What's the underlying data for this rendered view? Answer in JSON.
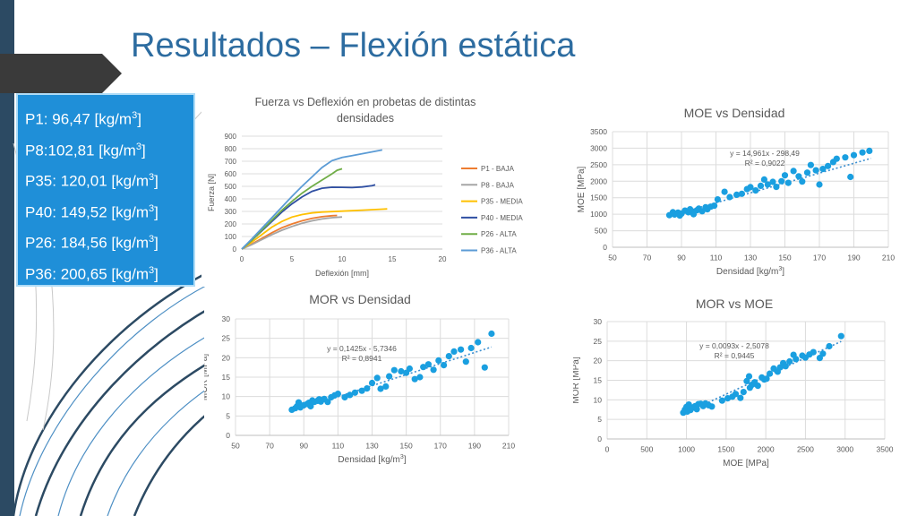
{
  "slide": {
    "title": "Resultados – Flexión estática"
  },
  "density_box": {
    "items": [
      {
        "pre": "P1: 96,47 [kg/m",
        "sup": "3",
        "post": "]"
      },
      {
        "pre": "P8:102,81 [kg/m",
        "sup": "3",
        "post": "]"
      },
      {
        "pre": "P35: 120,01 [kg/m",
        "sup": "3",
        "post": "]"
      },
      {
        "pre": "P40: 149,52 [kg/m",
        "sup": "3",
        "post": "]"
      },
      {
        "pre": "P26: 184,56 [kg/m",
        "sup": "3",
        "post": "]"
      },
      {
        "pre": "P36: 200,65 [kg/m",
        "sup": "3",
        "post": "]"
      }
    ]
  },
  "colors": {
    "title": "#2d6ca0",
    "box": "#1f8fd8",
    "points": "#1a9fe0",
    "trend": "#3b8fd0",
    "grid": "#dcdcdc",
    "left_bar": "#2c4a63"
  },
  "chart_data": [
    {
      "type": "line",
      "title": [
        "Fuerza vs Deflexión en probetas de distintas",
        "densidades"
      ],
      "xlabel": "Deflexión [mm]",
      "ylabel": "Fuerza [N]",
      "xlim": [
        0,
        20
      ],
      "ylim": [
        0,
        900
      ],
      "xticks": [
        0,
        5,
        10,
        15,
        20
      ],
      "yticks": [
        0,
        100,
        200,
        300,
        400,
        500,
        600,
        700,
        800,
        900
      ],
      "grid": true,
      "legend": "right",
      "series": [
        {
          "name": "P1 - BAJA",
          "color": "#ed7d31",
          "points": [
            [
              0,
              0
            ],
            [
              1,
              40
            ],
            [
              2,
              85
            ],
            [
              3,
              130
            ],
            [
              4,
              170
            ],
            [
              5,
              200
            ],
            [
              6,
              225
            ],
            [
              7,
              245
            ],
            [
              8,
              258
            ],
            [
              9,
              266
            ],
            [
              9.5,
              268
            ]
          ]
        },
        {
          "name": "P8 - BAJA",
          "color": "#a5a5a5",
          "points": [
            [
              0,
              0
            ],
            [
              1,
              35
            ],
            [
              2,
              75
            ],
            [
              3,
              115
            ],
            [
              4,
              150
            ],
            [
              5,
              180
            ],
            [
              6,
              205
            ],
            [
              7,
              225
            ],
            [
              8,
              240
            ],
            [
              9,
              250
            ],
            [
              10,
              256
            ]
          ]
        },
        {
          "name": "P35 - MEDIA",
          "color": "#ffc000",
          "points": [
            [
              0,
              0
            ],
            [
              1,
              55
            ],
            [
              2,
              115
            ],
            [
              3,
              175
            ],
            [
              4,
              220
            ],
            [
              5,
              255
            ],
            [
              6,
              275
            ],
            [
              7,
              288
            ],
            [
              8,
              295
            ],
            [
              10,
              302
            ],
            [
              12,
              310
            ],
            [
              14,
              318
            ],
            [
              14.5,
              320
            ]
          ]
        },
        {
          "name": "P40 - MEDIA",
          "color": "#2f4fa2",
          "points": [
            [
              0,
              0
            ],
            [
              1,
              70
            ],
            [
              2,
              145
            ],
            [
              3,
              220
            ],
            [
              4,
              295
            ],
            [
              5,
              360
            ],
            [
              6,
              415
            ],
            [
              7,
              460
            ],
            [
              8,
              485
            ],
            [
              9,
              493
            ],
            [
              10,
              492
            ],
            [
              11,
              490
            ],
            [
              12,
              495
            ],
            [
              13,
              505
            ],
            [
              13.3,
              512
            ]
          ]
        },
        {
          "name": "P26 - ALTA",
          "color": "#70ad47",
          "points": [
            [
              0,
              0
            ],
            [
              1,
              70
            ],
            [
              2,
              150
            ],
            [
              3,
              230
            ],
            [
              4,
              310
            ],
            [
              5,
              380
            ],
            [
              6,
              445
            ],
            [
              7,
              500
            ],
            [
              8,
              550
            ],
            [
              9,
              600
            ],
            [
              9.5,
              628
            ],
            [
              10,
              640
            ]
          ]
        },
        {
          "name": "P36 - ALTA",
          "color": "#5b9bd5",
          "points": [
            [
              0,
              0
            ],
            [
              1,
              80
            ],
            [
              2,
              165
            ],
            [
              3,
              250
            ],
            [
              4,
              335
            ],
            [
              5,
              420
            ],
            [
              6,
              500
            ],
            [
              7,
              575
            ],
            [
              8,
              650
            ],
            [
              9,
              705
            ],
            [
              10,
              730
            ],
            [
              11,
              745
            ],
            [
              12,
              760
            ],
            [
              13,
              775
            ],
            [
              14,
              790
            ]
          ]
        }
      ]
    },
    {
      "type": "scatter",
      "title": "MOE vs Densidad",
      "xlabel": "Densidad [kg/m",
      "xlabel_sup": "3",
      "xlabel_post": "]",
      "ylabel": "MOE [MPa]",
      "xlim": [
        50,
        210
      ],
      "ylim": [
        0,
        3500
      ],
      "xticks": [
        50,
        70,
        90,
        110,
        130,
        150,
        170,
        190,
        210
      ],
      "yticks": [
        0,
        500,
        1000,
        1500,
        2000,
        2500,
        3000,
        3500
      ],
      "grid": true,
      "trendline": {
        "slope": 14.961,
        "intercept": -298.49,
        "x_range": [
          83,
          200
        ]
      },
      "equation": "y = 14,961x - 298,49",
      "r2": "R² = 0,9022",
      "points": [
        [
          83,
          970
        ],
        [
          85,
          1060
        ],
        [
          86,
          990
        ],
        [
          88,
          1050
        ],
        [
          89,
          960
        ],
        [
          90,
          1020
        ],
        [
          92,
          1110
        ],
        [
          94,
          1060
        ],
        [
          95,
          1150
        ],
        [
          96,
          1080
        ],
        [
          97,
          1000
        ],
        [
          99,
          1120
        ],
        [
          100,
          1170
        ],
        [
          102,
          1090
        ],
        [
          104,
          1210
        ],
        [
          105,
          1150
        ],
        [
          107,
          1230
        ],
        [
          109,
          1260
        ],
        [
          111,
          1450
        ],
        [
          115,
          1680
        ],
        [
          118,
          1520
        ],
        [
          122,
          1590
        ],
        [
          125,
          1620
        ],
        [
          128,
          1760
        ],
        [
          130,
          1820
        ],
        [
          133,
          1720
        ],
        [
          136,
          1860
        ],
        [
          138,
          2050
        ],
        [
          140,
          1900
        ],
        [
          143,
          1980
        ],
        [
          145,
          1830
        ],
        [
          148,
          2000
        ],
        [
          150,
          2180
        ],
        [
          152,
          1950
        ],
        [
          155,
          2310
        ],
        [
          158,
          2150
        ],
        [
          160,
          1990
        ],
        [
          163,
          2260
        ],
        [
          165,
          2490
        ],
        [
          168,
          2330
        ],
        [
          170,
          1900
        ],
        [
          172,
          2370
        ],
        [
          175,
          2460
        ],
        [
          178,
          2580
        ],
        [
          180,
          2680
        ],
        [
          185,
          2720
        ],
        [
          188,
          2130
        ],
        [
          190,
          2790
        ],
        [
          195,
          2870
        ],
        [
          199,
          2920
        ]
      ]
    },
    {
      "type": "scatter",
      "title": "MOR vs Densidad",
      "xlabel": "Densidad [kg/m",
      "xlabel_sup": "3",
      "xlabel_post": "]",
      "ylabel": "MOR [MPa]",
      "xlim": [
        50,
        210
      ],
      "ylim": [
        0,
        30
      ],
      "xticks": [
        50,
        70,
        90,
        110,
        130,
        150,
        170,
        190,
        210
      ],
      "yticks": [
        0,
        5,
        10,
        15,
        20,
        25,
        30
      ],
      "grid": true,
      "trendline": {
        "slope": 0.1425,
        "intercept": -5.7346,
        "x_range": [
          83,
          200
        ]
      },
      "equation": "y = 0,1425x - 5,7346",
      "r2": "R² = 0,8941",
      "points": [
        [
          83,
          6.6
        ],
        [
          85,
          7.0
        ],
        [
          86,
          7.5
        ],
        [
          87,
          8.5
        ],
        [
          88,
          7.2
        ],
        [
          90,
          7.8
        ],
        [
          92,
          8.1
        ],
        [
          93,
          8.4
        ],
        [
          94,
          7.5
        ],
        [
          95,
          9.0
        ],
        [
          96,
          8.6
        ],
        [
          98,
          8.9
        ],
        [
          99,
          9.3
        ],
        [
          100,
          8.7
        ],
        [
          102,
          9.4
        ],
        [
          104,
          8.6
        ],
        [
          106,
          9.8
        ],
        [
          108,
          10.3
        ],
        [
          110,
          10.7
        ],
        [
          114,
          9.8
        ],
        [
          117,
          10.4
        ],
        [
          120,
          11.0
        ],
        [
          124,
          11.5
        ],
        [
          127,
          12.1
        ],
        [
          130,
          13.5
        ],
        [
          133,
          14.8
        ],
        [
          135,
          12.0
        ],
        [
          138,
          12.6
        ],
        [
          140,
          15.2
        ],
        [
          143,
          16.8
        ],
        [
          147,
          16.5
        ],
        [
          150,
          16.1
        ],
        [
          152,
          17.2
        ],
        [
          155,
          14.5
        ],
        [
          158,
          15.0
        ],
        [
          160,
          17.6
        ],
        [
          163,
          18.3
        ],
        [
          166,
          16.9
        ],
        [
          169,
          19.3
        ],
        [
          172,
          18.1
        ],
        [
          175,
          20.4
        ],
        [
          178,
          21.6
        ],
        [
          182,
          22.1
        ],
        [
          185,
          19.0
        ],
        [
          188,
          22.5
        ],
        [
          192,
          24.0
        ],
        [
          196,
          17.5
        ],
        [
          200,
          26.2
        ]
      ]
    },
    {
      "type": "scatter",
      "title": "MOR vs MOE",
      "xlabel": "MOE [MPa]",
      "ylabel": "MOR [MPa]",
      "xlim": [
        0,
        3500
      ],
      "ylim": [
        0,
        30
      ],
      "xticks": [
        0,
        500,
        1000,
        1500,
        2000,
        2500,
        3000,
        3500
      ],
      "yticks": [
        0,
        5,
        10,
        15,
        20,
        25,
        30
      ],
      "grid": true,
      "trendline": {
        "slope": 0.0093,
        "intercept": -2.5078,
        "x_range": [
          950,
          2950
        ]
      },
      "equation": "y = 0,0093x - 2,5078",
      "r2": "R² = 0,9445",
      "points": [
        [
          960,
          6.7
        ],
        [
          980,
          7.5
        ],
        [
          1000,
          8.2
        ],
        [
          1010,
          7.0
        ],
        [
          1030,
          8.8
        ],
        [
          1050,
          7.4
        ],
        [
          1070,
          7.9
        ],
        [
          1090,
          8.1
        ],
        [
          1110,
          8.4
        ],
        [
          1130,
          7.6
        ],
        [
          1150,
          8.9
        ],
        [
          1180,
          9.0
        ],
        [
          1210,
          8.4
        ],
        [
          1240,
          9.1
        ],
        [
          1280,
          8.6
        ],
        [
          1320,
          8.3
        ],
        [
          1450,
          9.8
        ],
        [
          1520,
          10.4
        ],
        [
          1580,
          10.8
        ],
        [
          1620,
          11.5
        ],
        [
          1680,
          10.5
        ],
        [
          1720,
          12.0
        ],
        [
          1760,
          14.8
        ],
        [
          1790,
          16.0
        ],
        [
          1800,
          13.1
        ],
        [
          1830,
          13.9
        ],
        [
          1860,
          14.5
        ],
        [
          1900,
          13.6
        ],
        [
          1950,
          15.7
        ],
        [
          1980,
          15.2
        ],
        [
          2010,
          15.4
        ],
        [
          2050,
          16.7
        ],
        [
          2100,
          18.0
        ],
        [
          2150,
          17.2
        ],
        [
          2180,
          18.3
        ],
        [
          2220,
          19.4
        ],
        [
          2250,
          18.6
        ],
        [
          2300,
          19.8
        ],
        [
          2350,
          21.5
        ],
        [
          2380,
          20.4
        ],
        [
          2460,
          21.3
        ],
        [
          2500,
          20.8
        ],
        [
          2550,
          21.6
        ],
        [
          2600,
          22.2
        ],
        [
          2680,
          20.7
        ],
        [
          2720,
          21.8
        ],
        [
          2800,
          23.7
        ],
        [
          2950,
          26.3
        ]
      ]
    }
  ]
}
